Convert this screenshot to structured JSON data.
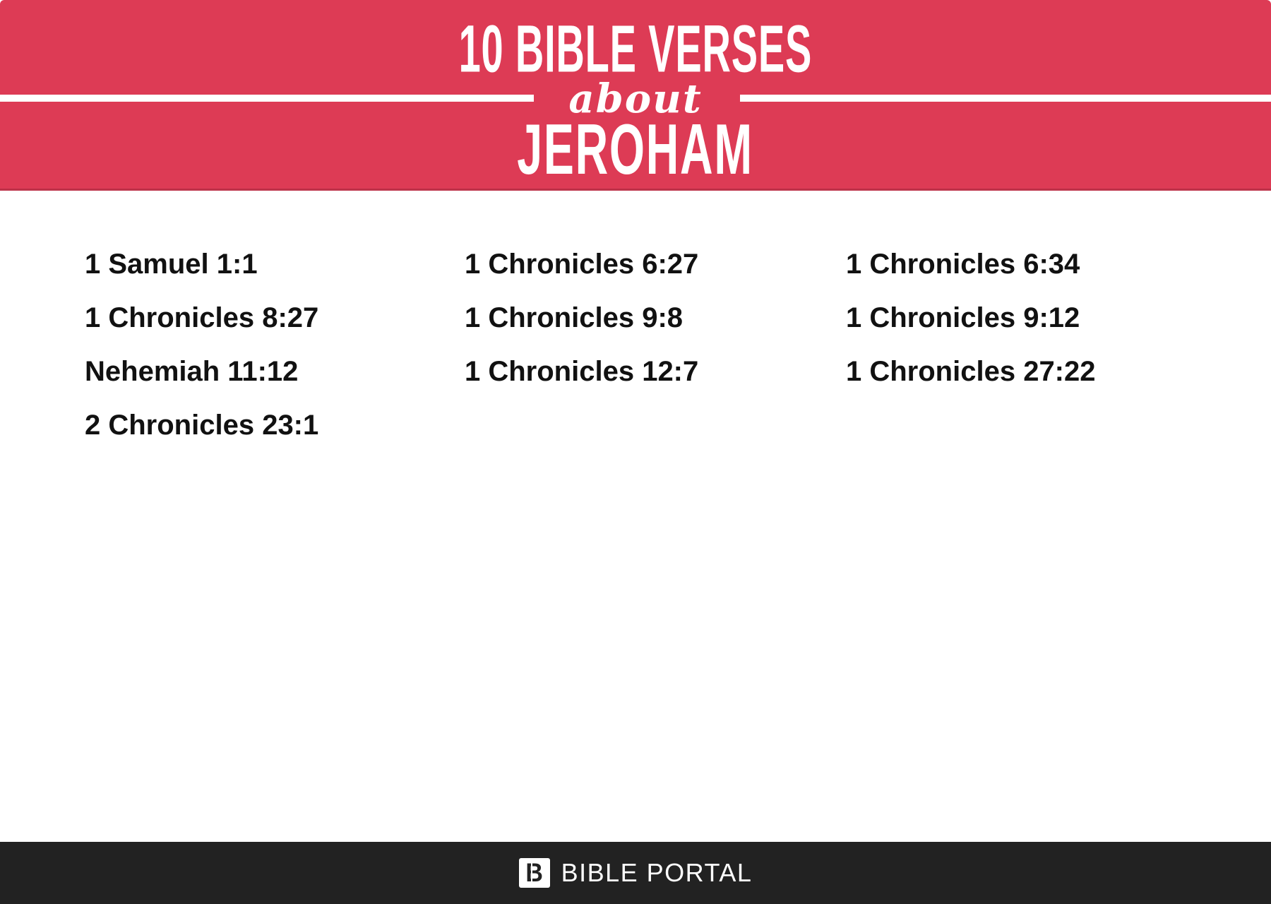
{
  "colors": {
    "accent": "#dd3b55",
    "footer_bg": "#222222",
    "text": "#111111",
    "paper": "#ffffff"
  },
  "header": {
    "count_title": "10 BIBLE VERSES",
    "about_label": "about",
    "subject": "JEROHAM"
  },
  "verses": {
    "columns": [
      {
        "items": [
          "1 Samuel 1:1",
          "1 Chronicles 8:27",
          "Nehemiah 11:12",
          "2 Chronicles 23:1"
        ]
      },
      {
        "items": [
          "1 Chronicles 6:27",
          "1 Chronicles 9:8",
          "1 Chronicles 12:7"
        ]
      },
      {
        "items": [
          "1 Chronicles 6:34",
          "1 Chronicles 9:12",
          "1 Chronicles 27:22"
        ]
      }
    ]
  },
  "footer": {
    "logo_letter": "B",
    "brand": "BIBLE PORTAL"
  }
}
